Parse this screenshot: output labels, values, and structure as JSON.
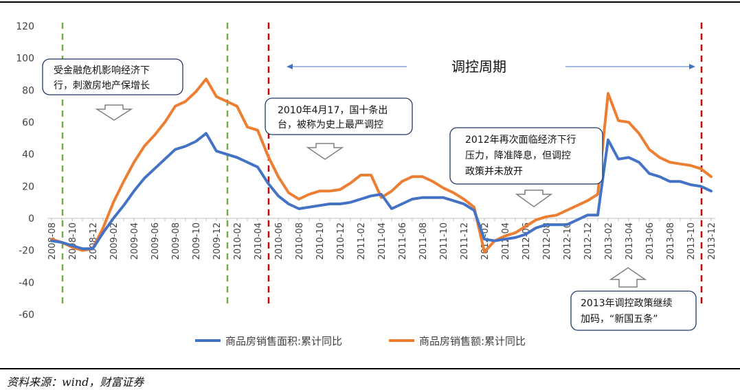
{
  "chart_data": {
    "type": "line",
    "title": "",
    "xlabel": "",
    "ylabel": "",
    "ylim": [
      -60,
      120
    ],
    "yticks": [
      120,
      100,
      80,
      60,
      40,
      20,
      0,
      -20,
      -40,
      -60
    ],
    "grid": false,
    "legend_position": "bottom",
    "x": [
      "2008-08",
      "2008-09",
      "2008-10",
      "2008-11",
      "2008-12",
      "2009-01",
      "2009-02",
      "2009-03",
      "2009-04",
      "2009-05",
      "2009-06",
      "2009-07",
      "2009-08",
      "2009-09",
      "2009-10",
      "2009-11",
      "2009-12",
      "2010-01",
      "2010-02",
      "2010-03",
      "2010-04",
      "2010-05",
      "2010-06",
      "2010-07",
      "2010-08",
      "2010-09",
      "2010-10",
      "2010-11",
      "2010-12",
      "2011-01",
      "2011-02",
      "2011-03",
      "2011-04",
      "2011-05",
      "2011-06",
      "2011-07",
      "2011-08",
      "2011-09",
      "2011-10",
      "2011-11",
      "2011-12",
      "2012-01",
      "2012-02",
      "2012-03",
      "2012-04",
      "2012-05",
      "2012-06",
      "2012-07",
      "2012-08",
      "2012-09",
      "2012-10",
      "2012-11",
      "2012-12",
      "2013-01",
      "2013-02",
      "2013-03",
      "2013-04",
      "2013-05",
      "2013-06",
      "2013-07",
      "2013-08",
      "2013-09",
      "2013-10",
      "2013-11",
      "2013-12"
    ],
    "x_tick_labels": [
      "2008-08",
      "2008-10",
      "2008-12",
      "2009-02",
      "2009-04",
      "2009-06",
      "2009-08",
      "2009-10",
      "2009-12",
      "2010-02",
      "2010-04",
      "2010-06",
      "2010-08",
      "2010-10",
      "2010-12",
      "2011-02",
      "2011-04",
      "2011-06",
      "2011-08",
      "2011-10",
      "2011-12",
      "2012-02",
      "2012-04",
      "2012-06",
      "2012-08",
      "2012-10",
      "2012-12",
      "2013-02",
      "2013-04",
      "2013-06",
      "2013-08",
      "2013-10",
      "2013-12"
    ],
    "series": [
      {
        "name": "商品房销售面积:累计同比",
        "color": "#4472C4",
        "values": [
          -14,
          -15,
          -17,
          -19,
          -19,
          -9,
          0,
          8,
          17,
          25,
          31,
          37,
          43,
          45,
          48,
          53,
          42,
          40,
          38,
          35,
          32,
          22,
          14,
          9,
          6,
          7,
          8,
          9,
          9,
          10,
          12,
          14,
          15,
          6,
          9,
          12,
          13,
          13,
          13,
          11,
          9,
          5,
          -13,
          -14,
          -13,
          -12,
          -10,
          -6,
          -4,
          -4,
          -4,
          -1,
          2,
          2,
          49,
          37,
          38,
          35,
          28,
          26,
          23,
          23,
          21,
          20,
          17
        ]
      },
      {
        "name": "商品房销售额:累计同比",
        "color": "#ED7D31",
        "values": [
          -13,
          -15,
          -18,
          -20,
          -19,
          -6,
          10,
          23,
          35,
          45,
          52,
          60,
          70,
          73,
          79,
          87,
          76,
          73,
          70,
          57,
          55,
          39,
          26,
          16,
          12,
          15,
          17,
          17,
          18,
          22,
          27,
          27,
          13,
          17,
          23,
          26,
          26,
          23,
          19,
          16,
          12,
          7,
          -21,
          -14,
          -11,
          -9,
          -5,
          -1,
          1,
          2,
          5,
          8,
          11,
          15,
          78,
          61,
          60,
          53,
          43,
          38,
          35,
          34,
          33,
          31,
          26
        ]
      }
    ],
    "vertical_lines": [
      {
        "x": "2008-09",
        "color": "#70AD47",
        "style": "dashed"
      },
      {
        "x": "2010-01",
        "color": "#70AD47",
        "style": "dashed"
      },
      {
        "x": "2010-05",
        "color": "#C00000",
        "style": "dashed"
      },
      {
        "x": "2013-11",
        "color": "#C00000",
        "style": "dashed"
      }
    ],
    "annotations": {
      "a1": {
        "line1": "受金融危机影响经济下",
        "line2": "行，刺激房地产保增长"
      },
      "a2": {
        "line1": "2010年4月17，国十条出",
        "line2": "台，被称为史上最严调控"
      },
      "a3": {
        "line1": "2012年再次面临经济下行",
        "line2": "压力，降准降息，但调控",
        "line3": "政策并未放开"
      },
      "a4": {
        "line1": "2013年调控政策继续",
        "line2": "加码，“新国五条”"
      },
      "period": "调控周期"
    }
  },
  "source": "资料来源：wind，财富证券"
}
